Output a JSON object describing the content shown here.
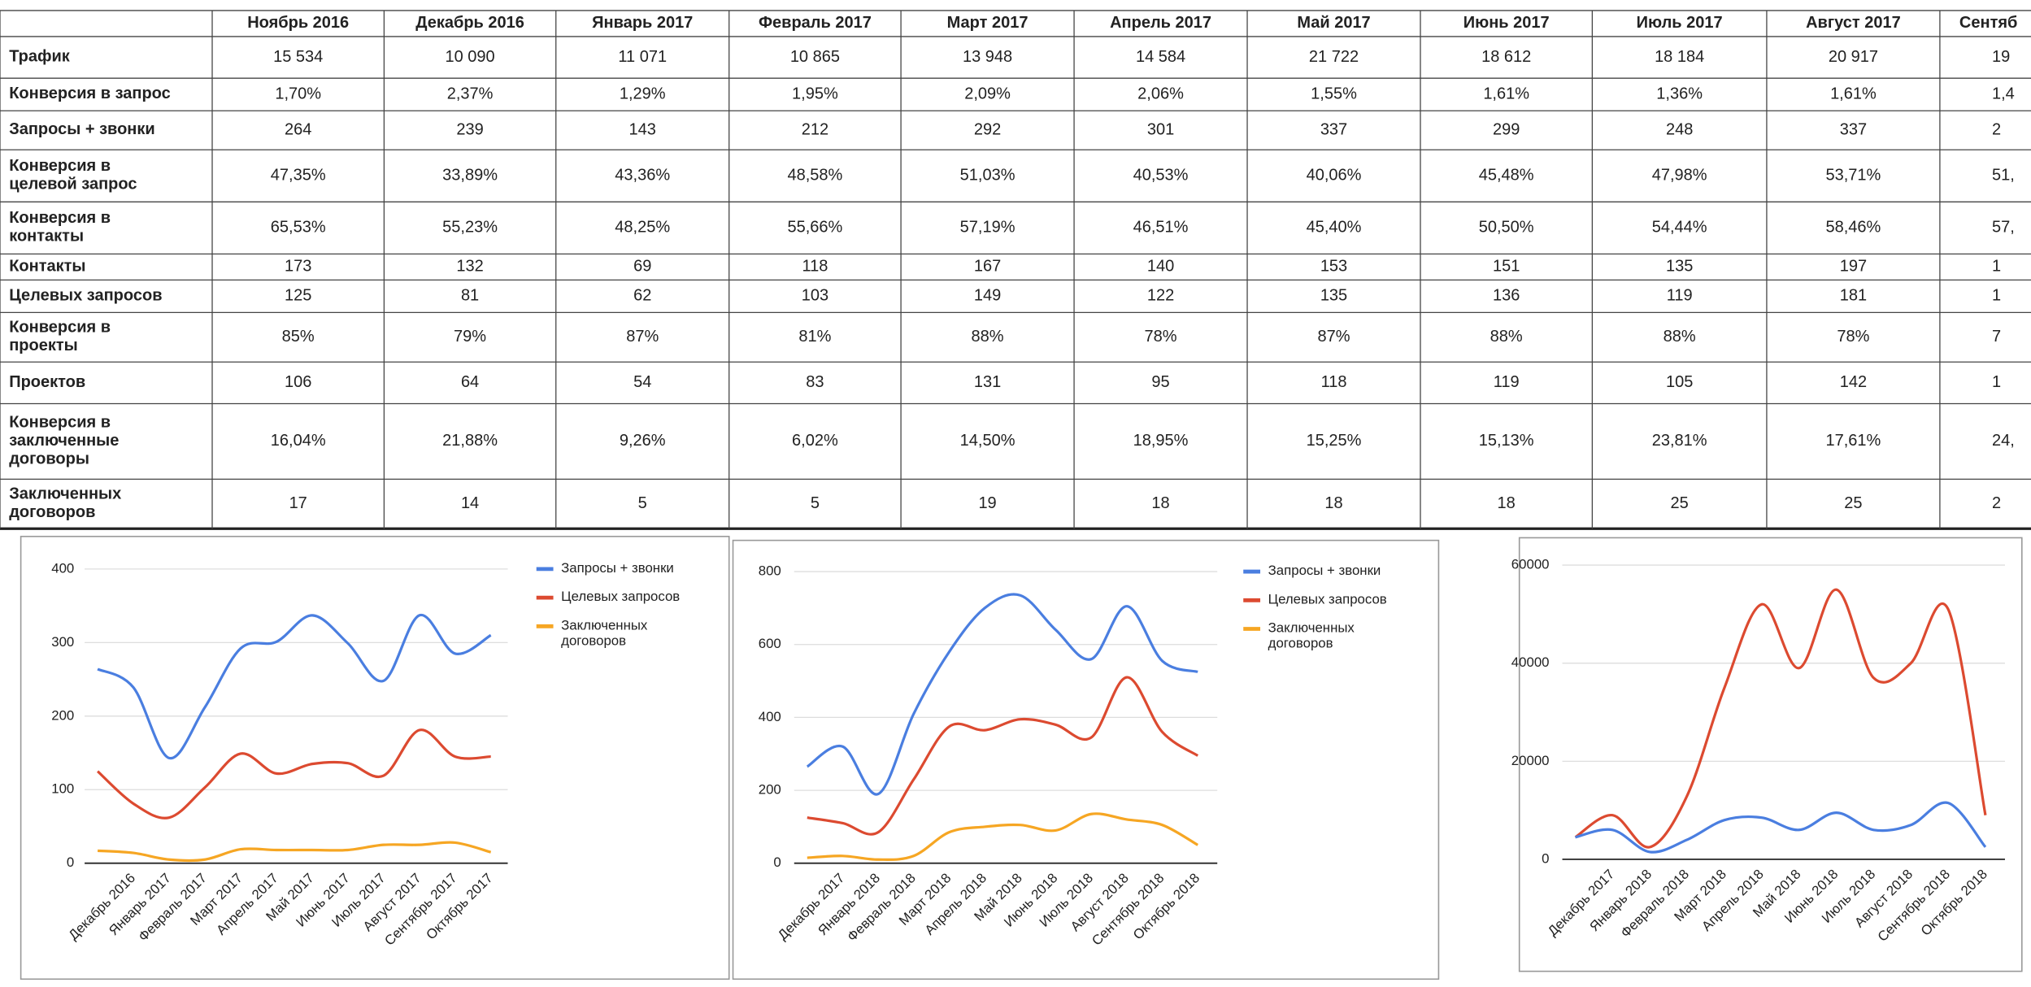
{
  "table": {
    "header": [
      "Ноябрь 2016",
      "Декабрь 2016",
      "Январь 2017",
      "Февраль 2017",
      "Март 2017",
      "Апрель 2017",
      "Май 2017",
      "Июнь 2017",
      "Июль 2017",
      "Август 2017",
      "Сентяб"
    ],
    "rows": [
      {
        "label": "Трафик",
        "cells": [
          "15 534",
          "10 090",
          "11 071",
          "10 865",
          "13 948",
          "14 584",
          "21 722",
          "18 612",
          "18 184",
          "20 917",
          "19"
        ]
      },
      {
        "label": "Конверсия в запрос",
        "cells": [
          "1,70%",
          "2,37%",
          "1,29%",
          "1,95%",
          "2,09%",
          "2,06%",
          "1,55%",
          "1,61%",
          "1,36%",
          "1,61%",
          "1,4"
        ]
      },
      {
        "label": "Запросы + звонки",
        "cells": [
          "264",
          "239",
          "143",
          "212",
          "292",
          "301",
          "337",
          "299",
          "248",
          "337",
          "2"
        ]
      },
      {
        "label": "Конверсия в целевой запрос",
        "cells": [
          "47,35%",
          "33,89%",
          "43,36%",
          "48,58%",
          "51,03%",
          "40,53%",
          "40,06%",
          "45,48%",
          "47,98%",
          "53,71%",
          "51,"
        ]
      },
      {
        "label": "Конверсия в контакты",
        "cells": [
          "65,53%",
          "55,23%",
          "48,25%",
          "55,66%",
          "57,19%",
          "46,51%",
          "45,40%",
          "50,50%",
          "54,44%",
          "58,46%",
          "57,"
        ]
      },
      {
        "label": "Контакты",
        "cells": [
          "173",
          "132",
          "69",
          "118",
          "167",
          "140",
          "153",
          "151",
          "135",
          "197",
          "1"
        ]
      },
      {
        "label": "Целевых запросов",
        "cells": [
          "125",
          "81",
          "62",
          "103",
          "149",
          "122",
          "135",
          "136",
          "119",
          "181",
          "1"
        ]
      },
      {
        "label": "Конверсия в проекты",
        "cells": [
          "85%",
          "79%",
          "87%",
          "81%",
          "88%",
          "78%",
          "87%",
          "88%",
          "88%",
          "78%",
          "7"
        ]
      },
      {
        "label": "Проектов",
        "cells": [
          "106",
          "64",
          "54",
          "83",
          "131",
          "95",
          "118",
          "119",
          "105",
          "142",
          "1"
        ]
      },
      {
        "label": "Конверсия в заключенные договоры",
        "cells": [
          "16,04%",
          "21,88%",
          "9,26%",
          "6,02%",
          "14,50%",
          "18,95%",
          "15,25%",
          "15,13%",
          "23,81%",
          "17,61%",
          "24,"
        ]
      },
      {
        "label": "Заключенных договоров",
        "cells": [
          "17",
          "14",
          "5",
          "5",
          "19",
          "18",
          "18",
          "18",
          "25",
          "25",
          "2"
        ]
      }
    ]
  },
  "chart_data": [
    {
      "type": "line",
      "categories": [
        null,
        "Декабрь 2016",
        "Январь 2017",
        "Февраль 2017",
        "Март 2017",
        "Апрель 2017",
        "Май 2017",
        "Июнь 2017",
        "Июль 2017",
        "Август 2017",
        "Сентябрь 2017",
        "Октябрь 2017"
      ],
      "series": [
        {
          "name": "Запросы + звонки",
          "color": "#4a7ee0",
          "values": [
            264,
            239,
            143,
            212,
            292,
            301,
            337,
            299,
            248,
            337,
            285,
            310
          ]
        },
        {
          "name": "Целевых запросов",
          "color": "#dc4a30",
          "values": [
            125,
            81,
            62,
            103,
            149,
            122,
            135,
            136,
            119,
            181,
            145,
            145
          ]
        },
        {
          "name": "Заключенных договоров",
          "color": "#f6a623",
          "values": [
            17,
            14,
            5,
            5,
            19,
            18,
            18,
            18,
            25,
            25,
            28,
            15
          ]
        }
      ],
      "ylim": [
        0,
        400
      ],
      "yticks": [
        0,
        100,
        200,
        300,
        400
      ],
      "grid": true,
      "legend": "right"
    },
    {
      "type": "line",
      "categories": [
        null,
        "Декабрь 2017",
        "Январь 2018",
        "Февраль 2018",
        "Март 2018",
        "Апрель 2018",
        "Май 2018",
        "Июнь 2018",
        "Июль 2018",
        "Август 2018",
        "Сентябрь 2018",
        "Октябрь 2018"
      ],
      "series": [
        {
          "name": "Запросы + звонки",
          "color": "#4a7ee0",
          "values": [
            265,
            320,
            190,
            410,
            580,
            700,
            735,
            640,
            560,
            705,
            555,
            525
          ]
        },
        {
          "name": "Целевых запросов",
          "color": "#dc4a30",
          "values": [
            125,
            110,
            85,
            230,
            375,
            365,
            395,
            380,
            345,
            510,
            360,
            295
          ]
        },
        {
          "name": "Заключенных договоров",
          "color": "#f6a623",
          "values": [
            15,
            20,
            10,
            20,
            85,
            100,
            105,
            90,
            135,
            120,
            105,
            50
          ]
        }
      ],
      "ylim": [
        0,
        800
      ],
      "yticks": [
        0,
        200,
        400,
        600,
        800
      ],
      "grid": true,
      "legend": "right"
    },
    {
      "type": "line",
      "categories": [
        null,
        "Декабрь 2017",
        "Январь 2018",
        "Февраль 2018",
        "Март 2018",
        "Апрель 2018",
        "Май 2018",
        "Июнь 2018",
        "Июль 2018",
        "Август 2018",
        "Сентябрь 2018",
        "Октябрь 2018"
      ],
      "series": [
        {
          "color": "#dc4a30",
          "values": [
            4500,
            9000,
            2500,
            13000,
            35000,
            52000,
            39000,
            55000,
            37000,
            40000,
            51000,
            9000
          ]
        },
        {
          "color": "#4a7ee0",
          "values": [
            4500,
            6000,
            1500,
            4000,
            8000,
            8500,
            6000,
            9500,
            6000,
            7000,
            11500,
            2500
          ]
        }
      ],
      "ylim": [
        0,
        60000
      ],
      "yticks": [
        0,
        20000,
        40000,
        60000
      ],
      "grid": true
    }
  ]
}
